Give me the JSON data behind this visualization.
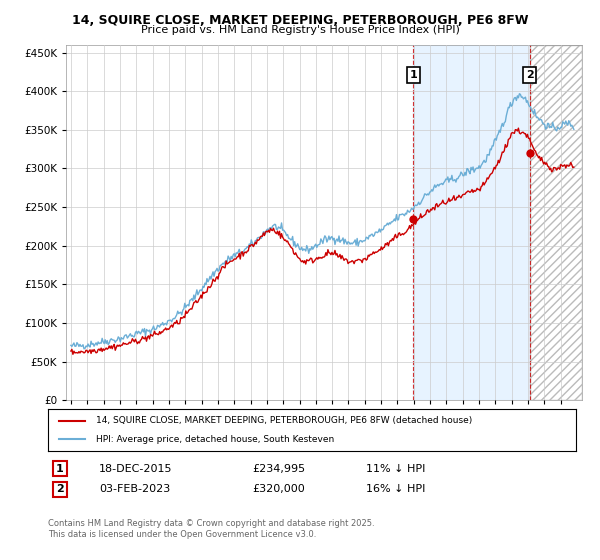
{
  "title": "14, SQUIRE CLOSE, MARKET DEEPING, PETERBOROUGH, PE6 8FW",
  "subtitle": "Price paid vs. HM Land Registry's House Price Index (HPI)",
  "legend_line1": "14, SQUIRE CLOSE, MARKET DEEPING, PETERBOROUGH, PE6 8FW (detached house)",
  "legend_line2": "HPI: Average price, detached house, South Kesteven",
  "transaction1_label": "1",
  "transaction1_date": "18-DEC-2015",
  "transaction1_price": "£234,995",
  "transaction1_hpi": "11% ↓ HPI",
  "transaction2_label": "2",
  "transaction2_date": "03-FEB-2023",
  "transaction2_price": "£320,000",
  "transaction2_hpi": "16% ↓ HPI",
  "footnote": "Contains HM Land Registry data © Crown copyright and database right 2025.\nThis data is licensed under the Open Government Licence v3.0.",
  "hpi_color": "#6baed6",
  "price_color": "#cc0000",
  "vline_color": "#cc0000",
  "shade_color": "#ddeeff",
  "background_color": "#ffffff",
  "grid_color": "#cccccc",
  "ylim": [
    0,
    460000
  ],
  "yticks": [
    0,
    50000,
    100000,
    150000,
    200000,
    250000,
    300000,
    350000,
    400000,
    450000
  ],
  "xlim_start": 1994.7,
  "xlim_end": 2026.3,
  "marker1_x": 2015.97,
  "marker1_y_price": 234995,
  "marker2_x": 2023.09,
  "marker2_y_price": 320000,
  "hpi_points_x": [
    1995,
    1995.5,
    1996,
    1996.5,
    1997,
    1997.5,
    1998,
    1998.5,
    1999,
    1999.5,
    2000,
    2000.5,
    2001,
    2001.5,
    2002,
    2002.5,
    2003,
    2003.5,
    2004,
    2004.5,
    2005,
    2005.5,
    2006,
    2006.5,
    2007,
    2007.5,
    2008,
    2008.5,
    2009,
    2009.5,
    2010,
    2010.5,
    2011,
    2011.5,
    2012,
    2012.5,
    2013,
    2013.5,
    2014,
    2014.5,
    2015,
    2015.5,
    2016,
    2016.5,
    2017,
    2017.5,
    2018,
    2018.5,
    2019,
    2019.5,
    2020,
    2020.5,
    2021,
    2021.5,
    2022,
    2022.5,
    2023,
    2023.5,
    2024,
    2024.5,
    2025,
    2025.5
  ],
  "hpi_points_y": [
    70000,
    71000,
    72000,
    74000,
    76000,
    78000,
    80000,
    83000,
    86000,
    89000,
    92000,
    97000,
    103000,
    110000,
    120000,
    132000,
    145000,
    158000,
    170000,
    180000,
    187000,
    193000,
    200000,
    210000,
    220000,
    225000,
    218000,
    208000,
    198000,
    195000,
    200000,
    207000,
    210000,
    208000,
    204000,
    204000,
    208000,
    214000,
    220000,
    228000,
    236000,
    242000,
    250000,
    260000,
    270000,
    278000,
    283000,
    287000,
    292000,
    298000,
    302000,
    315000,
    335000,
    360000,
    385000,
    395000,
    385000,
    368000,
    358000,
    352000,
    355000,
    358000
  ],
  "price_points_x": [
    1995,
    1995.5,
    1996,
    1996.5,
    1997,
    1997.5,
    1998,
    1998.5,
    1999,
    1999.5,
    2000,
    2000.5,
    2001,
    2001.5,
    2002,
    2002.5,
    2003,
    2003.5,
    2004,
    2004.5,
    2005,
    2005.5,
    2006,
    2006.5,
    2007,
    2007.5,
    2008,
    2008.5,
    2009,
    2009.5,
    2010,
    2010.5,
    2011,
    2011.5,
    2012,
    2012.5,
    2013,
    2013.5,
    2014,
    2014.5,
    2015,
    2015.5,
    2016,
    2016.5,
    2017,
    2017.5,
    2018,
    2018.5,
    2019,
    2019.5,
    2020,
    2020.5,
    2021,
    2021.5,
    2022,
    2022.5,
    2023,
    2023.5,
    2024,
    2024.5,
    2025,
    2025.5
  ],
  "price_points_y": [
    62000,
    63000,
    63500,
    65000,
    67000,
    69000,
    71000,
    74000,
    77000,
    80000,
    84000,
    88000,
    94000,
    100000,
    110000,
    122000,
    135000,
    148000,
    162000,
    175000,
    183000,
    190000,
    198000,
    208000,
    218000,
    220000,
    210000,
    198000,
    183000,
    180000,
    183000,
    188000,
    190000,
    185000,
    180000,
    180000,
    183000,
    190000,
    196000,
    204000,
    212000,
    219000,
    228000,
    238000,
    246000,
    252000,
    257000,
    260000,
    264000,
    270000,
    273000,
    285000,
    302000,
    322000,
    345000,
    348000,
    340000,
    318000,
    308000,
    300000,
    302000,
    305000
  ]
}
